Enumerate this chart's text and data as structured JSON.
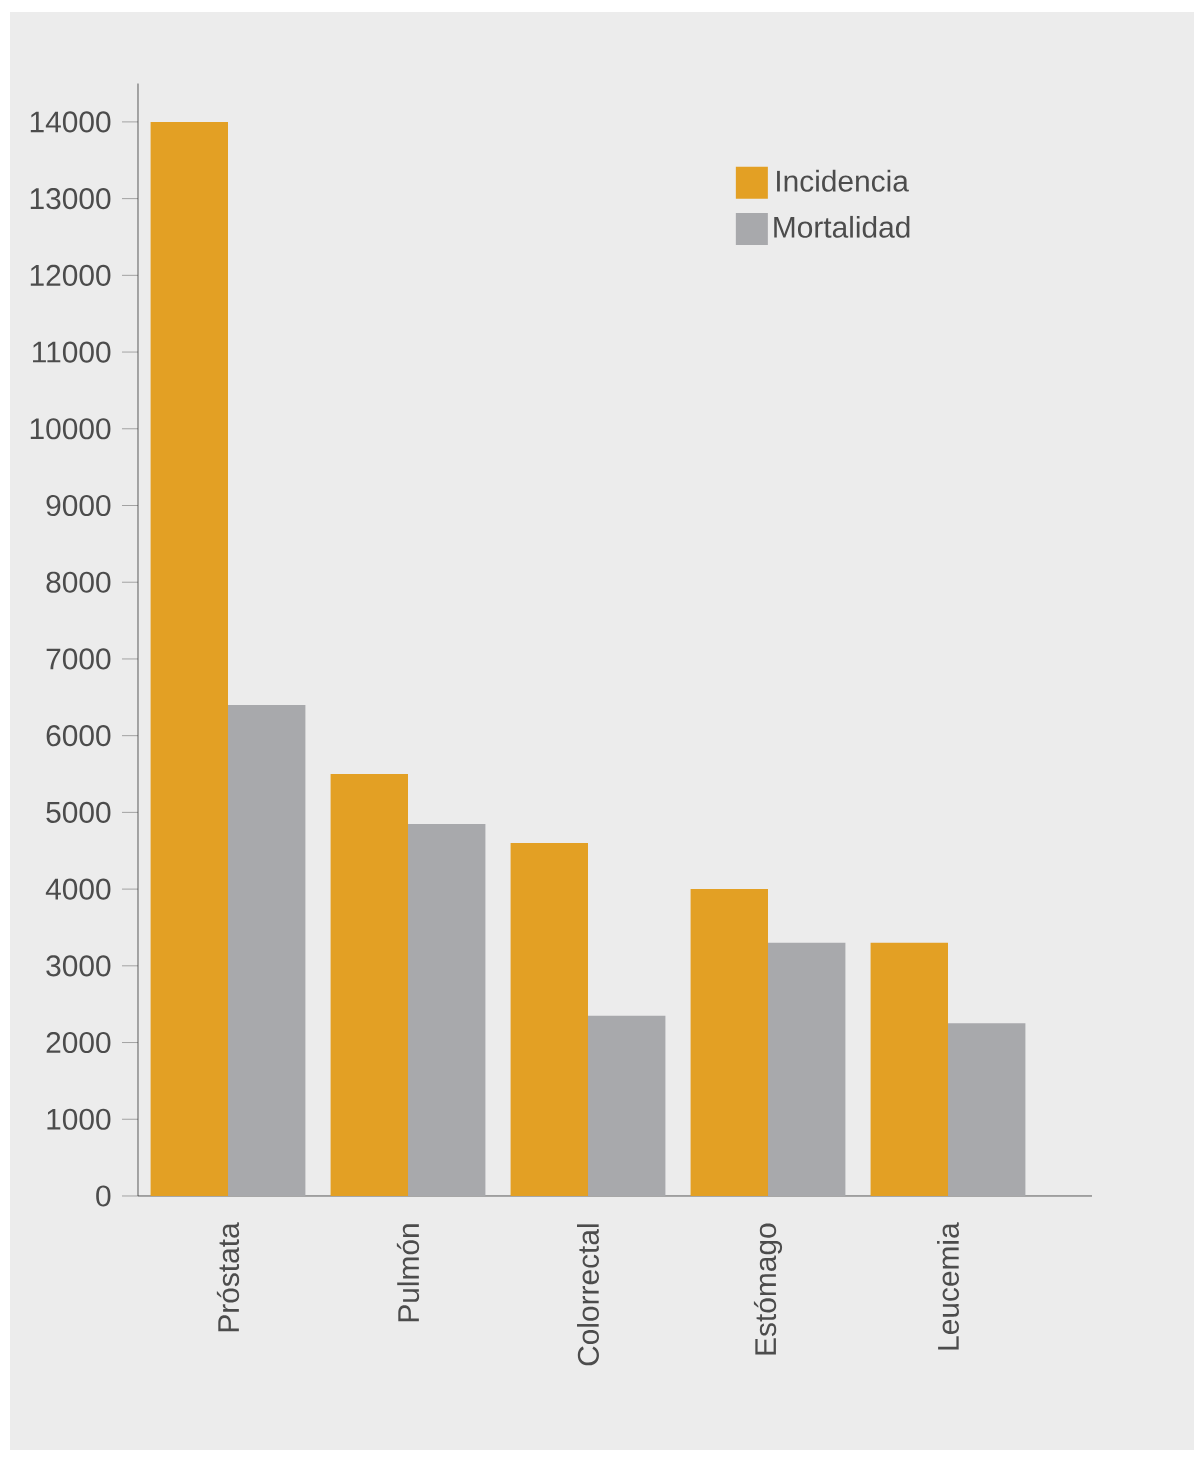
{
  "chart_data": {
    "type": "bar",
    "categories": [
      "Próstata",
      "Pulmón",
      "Colorrectal",
      "Estómago",
      "Leucemia"
    ],
    "series": [
      {
        "name": "Incidencia",
        "color": "#e3a024",
        "values": [
          14000,
          5500,
          4600,
          4000,
          3300
        ]
      },
      {
        "name": "Mortalidad",
        "color": "#a8a9ac",
        "values": [
          6400,
          4850,
          2350,
          3300,
          2250
        ]
      }
    ],
    "ylim": [
      0,
      14500
    ],
    "yticks": [
      0,
      1000,
      2000,
      3000,
      4000,
      5000,
      6000,
      7000,
      8000,
      9000,
      10000,
      11000,
      12000,
      13000,
      14000
    ],
    "legend": "top right"
  }
}
